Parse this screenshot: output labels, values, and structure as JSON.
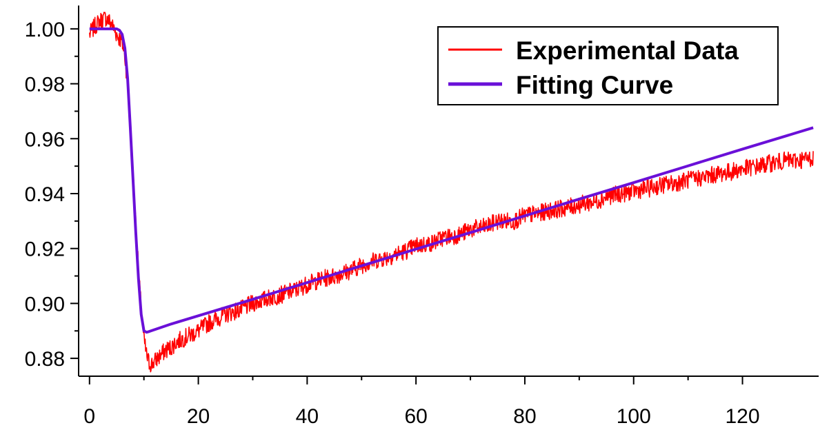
{
  "chart_data": {
    "type": "line",
    "title": "",
    "xlabel": "",
    "ylabel": "",
    "xlim": [
      -2,
      134
    ],
    "ylim": [
      0.8735,
      1.0085
    ],
    "x_ticks": [
      0,
      20,
      40,
      60,
      80,
      100,
      120
    ],
    "x_tick_labels": [
      "0",
      "20",
      "40",
      "60",
      "80",
      "100",
      "120"
    ],
    "y_ticks": [
      0.88,
      0.9,
      0.92,
      0.94,
      0.96,
      0.98,
      1.0
    ],
    "y_tick_labels": [
      "0.88",
      "0.90",
      "0.92",
      "0.94",
      "0.96",
      "0.98",
      "1.00"
    ],
    "grid": false,
    "legend": {
      "position": "top-right",
      "entries": [
        "Experimental Data",
        "Fitting Curve"
      ]
    },
    "colors": {
      "experimental": "#ff0000",
      "fit": "#6a10d8",
      "axis": "#000000"
    },
    "series": [
      {
        "name": "Experimental Data",
        "x": [
          0,
          1,
          2,
          3,
          4,
          5,
          6,
          6.5,
          7,
          7.5,
          8,
          8.5,
          9,
          9.5,
          10,
          10.5,
          11,
          11.5,
          12,
          13,
          14,
          15,
          16,
          18,
          20,
          22,
          25,
          28,
          30,
          33,
          35,
          38,
          40,
          43,
          45,
          48,
          50,
          53,
          55,
          58,
          60,
          63,
          65,
          68,
          70,
          73,
          75,
          78,
          80,
          83,
          85,
          88,
          90,
          93,
          95,
          98,
          100,
          103,
          105,
          108,
          110,
          113,
          115,
          118,
          120,
          123,
          125,
          128,
          130,
          133
        ],
        "y": [
          0.998,
          1.001,
          1.003,
          1.004,
          1.002,
          0.998,
          0.995,
          0.99,
          0.98,
          0.965,
          0.948,
          0.93,
          0.912,
          0.898,
          0.887,
          0.881,
          0.878,
          0.878,
          0.879,
          0.881,
          0.883,
          0.884,
          0.886,
          0.888,
          0.89,
          0.893,
          0.896,
          0.898,
          0.9,
          0.902,
          0.903,
          0.905,
          0.907,
          0.909,
          0.91,
          0.912,
          0.914,
          0.916,
          0.917,
          0.919,
          0.921,
          0.922,
          0.924,
          0.925,
          0.927,
          0.928,
          0.93,
          0.93,
          0.932,
          0.933,
          0.934,
          0.935,
          0.936,
          0.937,
          0.939,
          0.94,
          0.941,
          0.942,
          0.943,
          0.944,
          0.945,
          0.946,
          0.947,
          0.948,
          0.949,
          0.95,
          0.951,
          0.952,
          0.952,
          0.953
        ]
      },
      {
        "name": "Fitting Curve",
        "x": [
          0,
          2,
          4,
          5,
          5.5,
          6,
          6.5,
          7,
          7.5,
          8,
          8.5,
          9,
          9.5,
          10,
          10.5,
          11,
          15,
          20,
          30,
          40,
          50,
          60,
          70,
          80,
          90,
          100,
          110,
          120,
          130,
          133
        ],
        "y": [
          1.0,
          1.0,
          1.0,
          1.0,
          0.9995,
          0.998,
          0.993,
          0.982,
          0.964,
          0.945,
          0.926,
          0.909,
          0.896,
          0.89,
          0.8895,
          0.8898,
          0.8925,
          0.8955,
          0.9015,
          0.9076,
          0.9137,
          0.9198,
          0.9258,
          0.9319,
          0.938,
          0.944,
          0.9501,
          0.9562,
          0.9622,
          0.964
        ]
      }
    ]
  }
}
